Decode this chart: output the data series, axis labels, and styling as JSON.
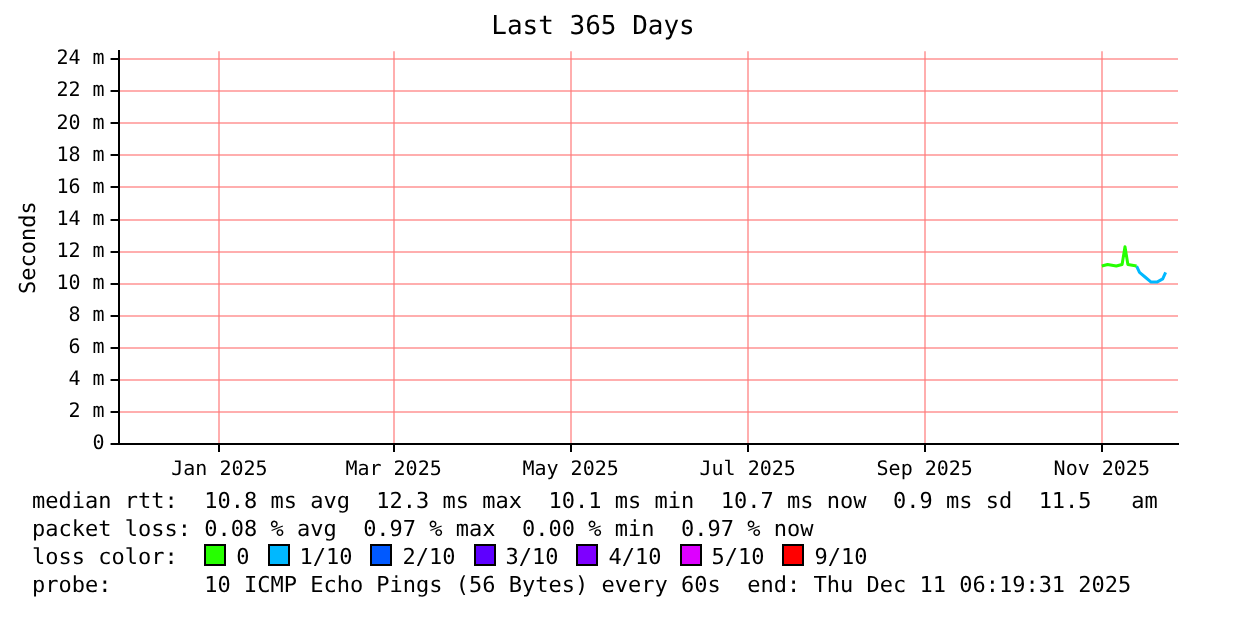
{
  "chart_data": {
    "type": "line",
    "title": "Last 365 Days",
    "ylabel": "Seconds",
    "legend_title": "loss color:",
    "x": [
      "2025-11-15",
      "2025-11-17",
      "2025-11-20",
      "2025-11-22",
      "2025-11-23",
      "2025-11-24",
      "2025-11-27",
      "2025-11-28",
      "2025-11-30",
      "2025-12-02",
      "2025-12-04",
      "2025-12-06",
      "2025-12-07"
    ],
    "series": [
      {
        "name": "0",
        "color": "#26ff00",
        "values": [
          11.1,
          11.2,
          11.1,
          11.2,
          12.3,
          11.2,
          11.1,
          null,
          null,
          null,
          null,
          null,
          null
        ]
      },
      {
        "name": "1/10",
        "color": "#00b8ff",
        "values": [
          null,
          null,
          null,
          null,
          null,
          null,
          11.1,
          10.7,
          10.4,
          10.1,
          10.1,
          10.3,
          10.7
        ]
      },
      {
        "name": "2/10",
        "color": "#0059ff",
        "values": [
          null,
          null,
          null,
          null,
          null,
          null,
          null,
          null,
          null,
          null,
          null,
          null,
          null
        ]
      },
      {
        "name": "3/10",
        "color": "#5e00ff",
        "values": [
          null,
          null,
          null,
          null,
          null,
          null,
          null,
          null,
          null,
          null,
          null,
          null,
          null
        ]
      },
      {
        "name": "4/10",
        "color": "#7e00ff",
        "values": [
          null,
          null,
          null,
          null,
          null,
          null,
          null,
          null,
          null,
          null,
          null,
          null,
          null
        ]
      },
      {
        "name": "5/10",
        "color": "#dd00ff",
        "values": [
          null,
          null,
          null,
          null,
          null,
          null,
          null,
          null,
          null,
          null,
          null,
          null,
          null
        ]
      },
      {
        "name": "9/10",
        "color": "#ff0000",
        "values": [
          null,
          null,
          null,
          null,
          null,
          null,
          null,
          null,
          null,
          null,
          null,
          null,
          null
        ]
      }
    ],
    "xlim": [
      "2024-12-11T06:19",
      "2025-12-11T06:19"
    ],
    "xticks": [
      {
        "value": "2025-01-15",
        "label": "Jan 2025"
      },
      {
        "value": "2025-03-16",
        "label": "Mar 2025"
      },
      {
        "value": "2025-05-16",
        "label": "May 2025"
      },
      {
        "value": "2025-07-16",
        "label": "Jul 2025"
      },
      {
        "value": "2025-09-15",
        "label": "Sep 2025"
      },
      {
        "value": "2025-11-15",
        "label": "Nov 2025"
      }
    ],
    "ylim": [
      0,
      24.5
    ],
    "yticks": [
      0,
      {
        "value": 2,
        "label": "2 m"
      },
      {
        "value": 4,
        "label": "4 m"
      },
      {
        "value": 6,
        "label": "6 m"
      },
      {
        "value": 8,
        "label": "8 m"
      },
      {
        "value": 10,
        "label": "10 m"
      },
      {
        "value": 12,
        "label": "12 m"
      },
      {
        "value": 14,
        "label": "14 m"
      },
      {
        "value": 16,
        "label": "16 m"
      },
      {
        "value": 18,
        "label": "18 m"
      },
      {
        "value": 20,
        "label": "20 m"
      },
      {
        "value": 22,
        "label": "22 m"
      },
      {
        "value": 24,
        "label": "24 m"
      }
    ],
    "grid": true,
    "legend": "bottom",
    "marker": "none",
    "line_style": "solid",
    "annotations": [
      "median rtt:  10.8 ms avg  12.3 ms max  10.1 ms min  10.7 ms now  0.9 ms sd  11.5   am",
      "packet loss: 0.08 % avg  0.97 % max  0.00 % min  0.97 % now",
      "probe:       10 ICMP Echo Pings (56 Bytes) every 60s  end: Thu Dec 11 06:19:31 2025"
    ]
  }
}
